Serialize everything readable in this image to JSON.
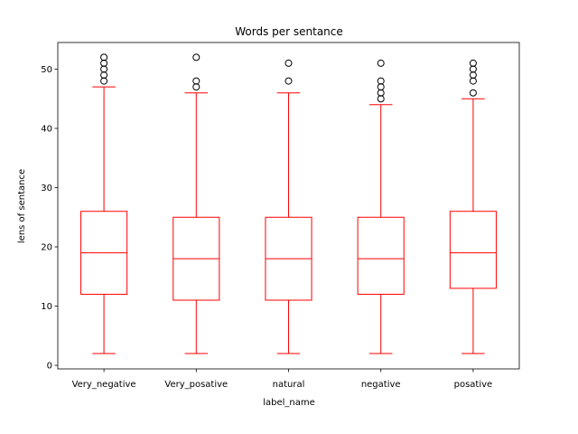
{
  "chart_data": {
    "type": "box",
    "title": "Words per sentance",
    "xlabel": "label_name",
    "ylabel": "lens of sentance",
    "ylim": [
      -0.6,
      54.5
    ],
    "yticks": [
      0,
      10,
      20,
      30,
      40,
      50
    ],
    "color": "#ff0000",
    "grid": false,
    "categories": [
      "Very_negative",
      "Very_posative",
      "natural",
      "negative",
      "posative"
    ],
    "boxes": [
      {
        "whislo": 2,
        "q1": 12,
        "med": 19,
        "q3": 26,
        "whishi": 47,
        "fliers": [
          48,
          49,
          50,
          51,
          52
        ]
      },
      {
        "whislo": 2,
        "q1": 11,
        "med": 18,
        "q3": 25,
        "whishi": 46,
        "fliers": [
          47,
          48,
          52
        ]
      },
      {
        "whislo": 2,
        "q1": 11,
        "med": 18,
        "q3": 25,
        "whishi": 46,
        "fliers": [
          48,
          51
        ]
      },
      {
        "whislo": 2,
        "q1": 12,
        "med": 18,
        "q3": 25,
        "whishi": 44,
        "fliers": [
          45,
          46,
          47,
          48,
          51
        ]
      },
      {
        "whislo": 2,
        "q1": 13,
        "med": 19,
        "q3": 26,
        "whishi": 45,
        "fliers": [
          46,
          48,
          49,
          50,
          51
        ]
      }
    ]
  }
}
